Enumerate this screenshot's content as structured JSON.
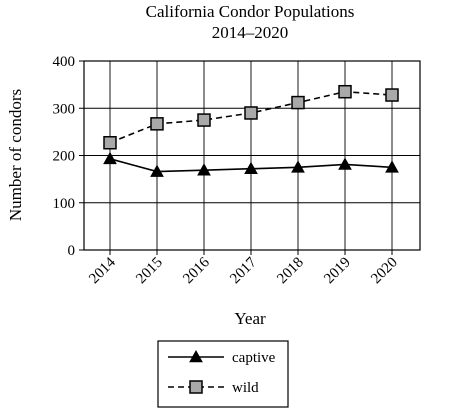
{
  "chart_data": {
    "type": "line",
    "title": "California Condor Populations",
    "subtitle": "2014–2020",
    "xlabel": "Year",
    "ylabel": "Number of condors",
    "categories": [
      "2014",
      "2015",
      "2016",
      "2017",
      "2018",
      "2019",
      "2020"
    ],
    "ylim": [
      0,
      400
    ],
    "yticks": [
      0,
      100,
      200,
      300,
      400
    ],
    "grid": true,
    "legend_position": "bottom-center",
    "series": [
      {
        "name": "captive",
        "values": [
          193,
          166,
          169,
          172,
          175,
          181,
          175
        ],
        "marker": "triangle",
        "line_style": "solid"
      },
      {
        "name": "wild",
        "values": [
          227,
          267,
          275,
          290,
          312,
          335,
          328
        ],
        "marker": "square",
        "line_style": "dashed"
      }
    ]
  }
}
